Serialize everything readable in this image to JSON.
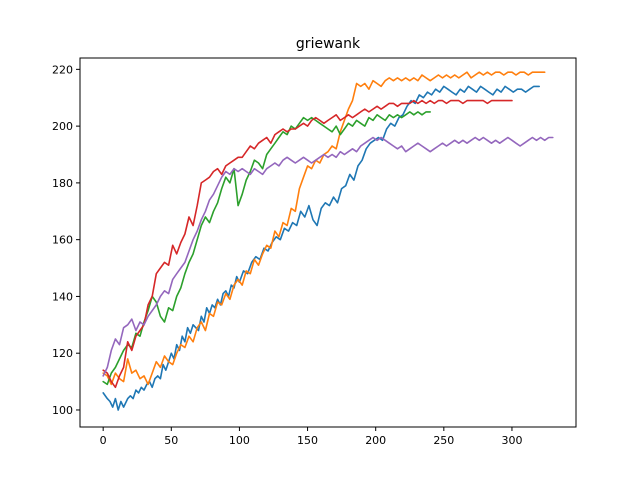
{
  "chart_data": {
    "type": "line",
    "title": "griewank",
    "xlabel": "",
    "ylabel": "",
    "xlim": [
      -17,
      347
    ],
    "ylim": [
      94,
      224
    ],
    "xticks": [
      0,
      50,
      100,
      150,
      200,
      250,
      300
    ],
    "yticks": [
      100,
      120,
      140,
      160,
      180,
      200,
      220
    ],
    "grid": false,
    "series": [
      {
        "color": "#1f77b4",
        "x": [
          0,
          3,
          5,
          7,
          9,
          11,
          13,
          15,
          18,
          20,
          22,
          24,
          26,
          28,
          30,
          32,
          34,
          36,
          38,
          40,
          42,
          44,
          46,
          48,
          50,
          52,
          54,
          56,
          58,
          60,
          62,
          64,
          66,
          68,
          70,
          72,
          74,
          76,
          78,
          80,
          82,
          84,
          86,
          88,
          90,
          92,
          94,
          96,
          98,
          100,
          103,
          106,
          109,
          112,
          115,
          118,
          121,
          124,
          127,
          130,
          133,
          136,
          139,
          142,
          145,
          148,
          151,
          154,
          157,
          160,
          163,
          166,
          169,
          172,
          175,
          178,
          181,
          184,
          187,
          190,
          193,
          196,
          199,
          202,
          205,
          208,
          211,
          214,
          217,
          220,
          223,
          226,
          229,
          232,
          235,
          238,
          241,
          244,
          247,
          250,
          253,
          256,
          259,
          262,
          265,
          268,
          271,
          274,
          277,
          280,
          283,
          286,
          289,
          292,
          295,
          298,
          301,
          304,
          307,
          310,
          313,
          316,
          320
        ],
        "y": [
          106,
          104,
          103,
          101,
          104,
          100,
          103,
          101,
          104,
          105,
          104,
          107,
          106,
          108,
          107,
          109,
          110,
          108,
          111,
          112,
          111,
          116,
          114,
          117,
          120,
          118,
          123,
          121,
          126,
          124,
          129,
          127,
          130,
          129,
          128,
          133,
          131,
          136,
          134,
          137,
          136,
          139,
          137,
          141,
          142,
          140,
          144,
          143,
          147,
          145,
          149,
          148,
          152,
          154,
          153,
          157,
          156,
          159,
          161,
          160,
          164,
          163,
          166,
          165,
          170,
          168,
          172,
          167,
          165,
          171,
          173,
          172,
          175,
          173,
          178,
          179,
          183,
          181,
          186,
          188,
          192,
          194,
          195,
          196,
          195,
          199,
          201,
          200,
          203,
          204,
          207,
          209,
          208,
          211,
          210,
          212,
          211,
          213,
          212,
          214,
          213,
          212,
          211,
          213,
          212,
          214,
          213,
          212,
          214,
          213,
          212,
          211,
          213,
          212,
          214,
          213,
          212,
          213,
          213,
          212,
          213,
          214,
          214
        ]
      },
      {
        "color": "#ff7f0e",
        "x": [
          0,
          3,
          6,
          9,
          12,
          15,
          18,
          21,
          24,
          27,
          30,
          33,
          36,
          39,
          42,
          45,
          48,
          51,
          54,
          57,
          60,
          63,
          66,
          69,
          72,
          75,
          78,
          81,
          84,
          87,
          90,
          93,
          96,
          99,
          102,
          105,
          108,
          111,
          114,
          117,
          120,
          123,
          126,
          129,
          132,
          135,
          138,
          141,
          144,
          147,
          150,
          153,
          156,
          159,
          162,
          165,
          168,
          171,
          174,
          177,
          180,
          183,
          186,
          189,
          192,
          195,
          198,
          201,
          204,
          207,
          210,
          213,
          216,
          219,
          222,
          225,
          228,
          231,
          234,
          237,
          240,
          243,
          246,
          249,
          252,
          255,
          258,
          261,
          264,
          267,
          270,
          273,
          276,
          279,
          282,
          285,
          288,
          291,
          294,
          297,
          300,
          303,
          306,
          309,
          312,
          315,
          318,
          321,
          324
        ],
        "y": [
          113,
          112,
          109,
          113,
          111,
          110,
          118,
          113,
          114,
          111,
          112,
          109,
          113,
          117,
          115,
          119,
          117,
          116,
          120,
          123,
          122,
          126,
          124,
          129,
          131,
          128,
          134,
          133,
          138,
          137,
          141,
          139,
          144,
          146,
          144,
          149,
          148,
          153,
          151,
          155,
          158,
          157,
          163,
          161,
          166,
          165,
          171,
          170,
          178,
          182,
          186,
          185,
          188,
          187,
          190,
          191,
          193,
          192,
          198,
          202,
          206,
          209,
          215,
          214,
          215,
          213,
          216,
          215,
          214,
          216,
          217,
          216,
          217,
          216,
          217,
          216,
          217,
          216,
          218,
          217,
          216,
          217,
          218,
          217,
          218,
          217,
          218,
          217,
          218,
          219,
          217,
          218,
          219,
          218,
          219,
          218,
          219,
          219,
          218,
          219,
          219,
          218,
          219,
          219,
          218,
          219,
          219,
          219,
          219
        ]
      },
      {
        "color": "#2ca02c",
        "x": [
          0,
          3,
          6,
          9,
          12,
          15,
          18,
          21,
          24,
          27,
          30,
          33,
          36,
          39,
          42,
          45,
          48,
          51,
          54,
          57,
          60,
          63,
          66,
          69,
          72,
          75,
          78,
          81,
          84,
          87,
          90,
          93,
          96,
          99,
          102,
          105,
          108,
          111,
          114,
          117,
          120,
          123,
          126,
          129,
          132,
          135,
          138,
          141,
          144,
          147,
          150,
          153,
          156,
          159,
          162,
          165,
          168,
          171,
          174,
          177,
          180,
          183,
          186,
          189,
          192,
          195,
          198,
          201,
          204,
          207,
          210,
          213,
          216,
          219,
          222,
          225,
          228,
          231,
          234,
          237,
          240
        ],
        "y": [
          110,
          109,
          113,
          115,
          118,
          121,
          123,
          122,
          127,
          126,
          131,
          135,
          140,
          138,
          133,
          131,
          136,
          135,
          140,
          143,
          148,
          152,
          155,
          160,
          165,
          168,
          166,
          170,
          173,
          178,
          182,
          180,
          185,
          172,
          176,
          181,
          184,
          188,
          187,
          185,
          190,
          192,
          194,
          196,
          198,
          197,
          200,
          199,
          201,
          203,
          202,
          203,
          202,
          201,
          200,
          199,
          198,
          200,
          197,
          199,
          201,
          200,
          202,
          201,
          200,
          203,
          202,
          204,
          203,
          202,
          204,
          203,
          204,
          203,
          204,
          205,
          204,
          205,
          204,
          205,
          205
        ]
      },
      {
        "color": "#d62728",
        "x": [
          0,
          3,
          6,
          9,
          12,
          15,
          18,
          21,
          24,
          27,
          30,
          33,
          36,
          39,
          42,
          45,
          48,
          51,
          54,
          57,
          60,
          63,
          66,
          69,
          72,
          75,
          78,
          81,
          84,
          87,
          90,
          93,
          96,
          99,
          102,
          105,
          108,
          111,
          114,
          117,
          120,
          123,
          126,
          129,
          132,
          135,
          138,
          141,
          144,
          147,
          150,
          153,
          156,
          159,
          162,
          165,
          168,
          171,
          174,
          177,
          180,
          183,
          186,
          189,
          192,
          195,
          198,
          201,
          204,
          207,
          210,
          213,
          216,
          219,
          222,
          225,
          228,
          231,
          234,
          237,
          240,
          243,
          246,
          249,
          252,
          255,
          258,
          261,
          264,
          267,
          270,
          273,
          276,
          279,
          282,
          285,
          288,
          291,
          294,
          297,
          300
        ],
        "y": [
          114,
          113,
          110,
          108,
          112,
          115,
          124,
          121,
          126,
          128,
          130,
          137,
          140,
          148,
          150,
          152,
          151,
          158,
          155,
          159,
          162,
          168,
          165,
          172,
          180,
          181,
          182,
          184,
          185,
          183,
          186,
          187,
          188,
          189,
          189,
          191,
          193,
          192,
          194,
          195,
          196,
          194,
          197,
          198,
          199,
          198,
          199,
          199,
          200,
          201,
          200,
          202,
          203,
          202,
          201,
          202,
          203,
          204,
          202,
          203,
          204,
          203,
          204,
          205,
          206,
          205,
          206,
          207,
          206,
          207,
          208,
          208,
          207,
          208,
          208,
          208,
          209,
          208,
          209,
          208,
          209,
          208,
          209,
          209,
          208,
          209,
          209,
          209,
          208,
          209,
          209,
          209,
          209,
          209,
          208,
          209,
          209,
          209,
          209,
          209,
          209
        ]
      },
      {
        "color": "#9467bd",
        "x": [
          0,
          3,
          6,
          9,
          12,
          15,
          18,
          21,
          24,
          27,
          30,
          33,
          36,
          39,
          42,
          45,
          48,
          51,
          54,
          57,
          60,
          63,
          66,
          69,
          72,
          75,
          78,
          81,
          84,
          87,
          90,
          93,
          96,
          99,
          102,
          105,
          108,
          111,
          114,
          117,
          120,
          123,
          126,
          129,
          132,
          135,
          138,
          141,
          144,
          147,
          150,
          153,
          156,
          159,
          162,
          165,
          168,
          171,
          174,
          177,
          180,
          183,
          186,
          189,
          192,
          195,
          198,
          201,
          204,
          207,
          210,
          213,
          216,
          219,
          222,
          225,
          228,
          231,
          234,
          237,
          240,
          243,
          246,
          249,
          252,
          255,
          258,
          261,
          264,
          267,
          270,
          273,
          276,
          279,
          282,
          285,
          288,
          291,
          294,
          297,
          300,
          303,
          306,
          309,
          312,
          315,
          318,
          321,
          324,
          327,
          330
        ],
        "y": [
          112,
          115,
          121,
          125,
          123,
          129,
          130,
          132,
          128,
          131,
          130,
          133,
          135,
          137,
          140,
          142,
          141,
          146,
          148,
          150,
          152,
          156,
          160,
          163,
          167,
          170,
          174,
          176,
          179,
          182,
          184,
          183,
          185,
          184,
          185,
          184,
          183,
          185,
          184,
          183,
          185,
          186,
          187,
          186,
          188,
          189,
          188,
          187,
          188,
          189,
          188,
          187,
          188,
          189,
          190,
          189,
          190,
          189,
          191,
          190,
          191,
          192,
          191,
          193,
          194,
          195,
          196,
          195,
          196,
          195,
          194,
          193,
          192,
          193,
          191,
          192,
          193,
          194,
          193,
          192,
          191,
          192,
          193,
          194,
          193,
          194,
          195,
          194,
          195,
          194,
          195,
          196,
          195,
          196,
          195,
          194,
          195,
          194,
          195,
          196,
          195,
          194,
          193,
          194,
          195,
          196,
          195,
          196,
          195,
          196,
          196
        ]
      }
    ]
  }
}
